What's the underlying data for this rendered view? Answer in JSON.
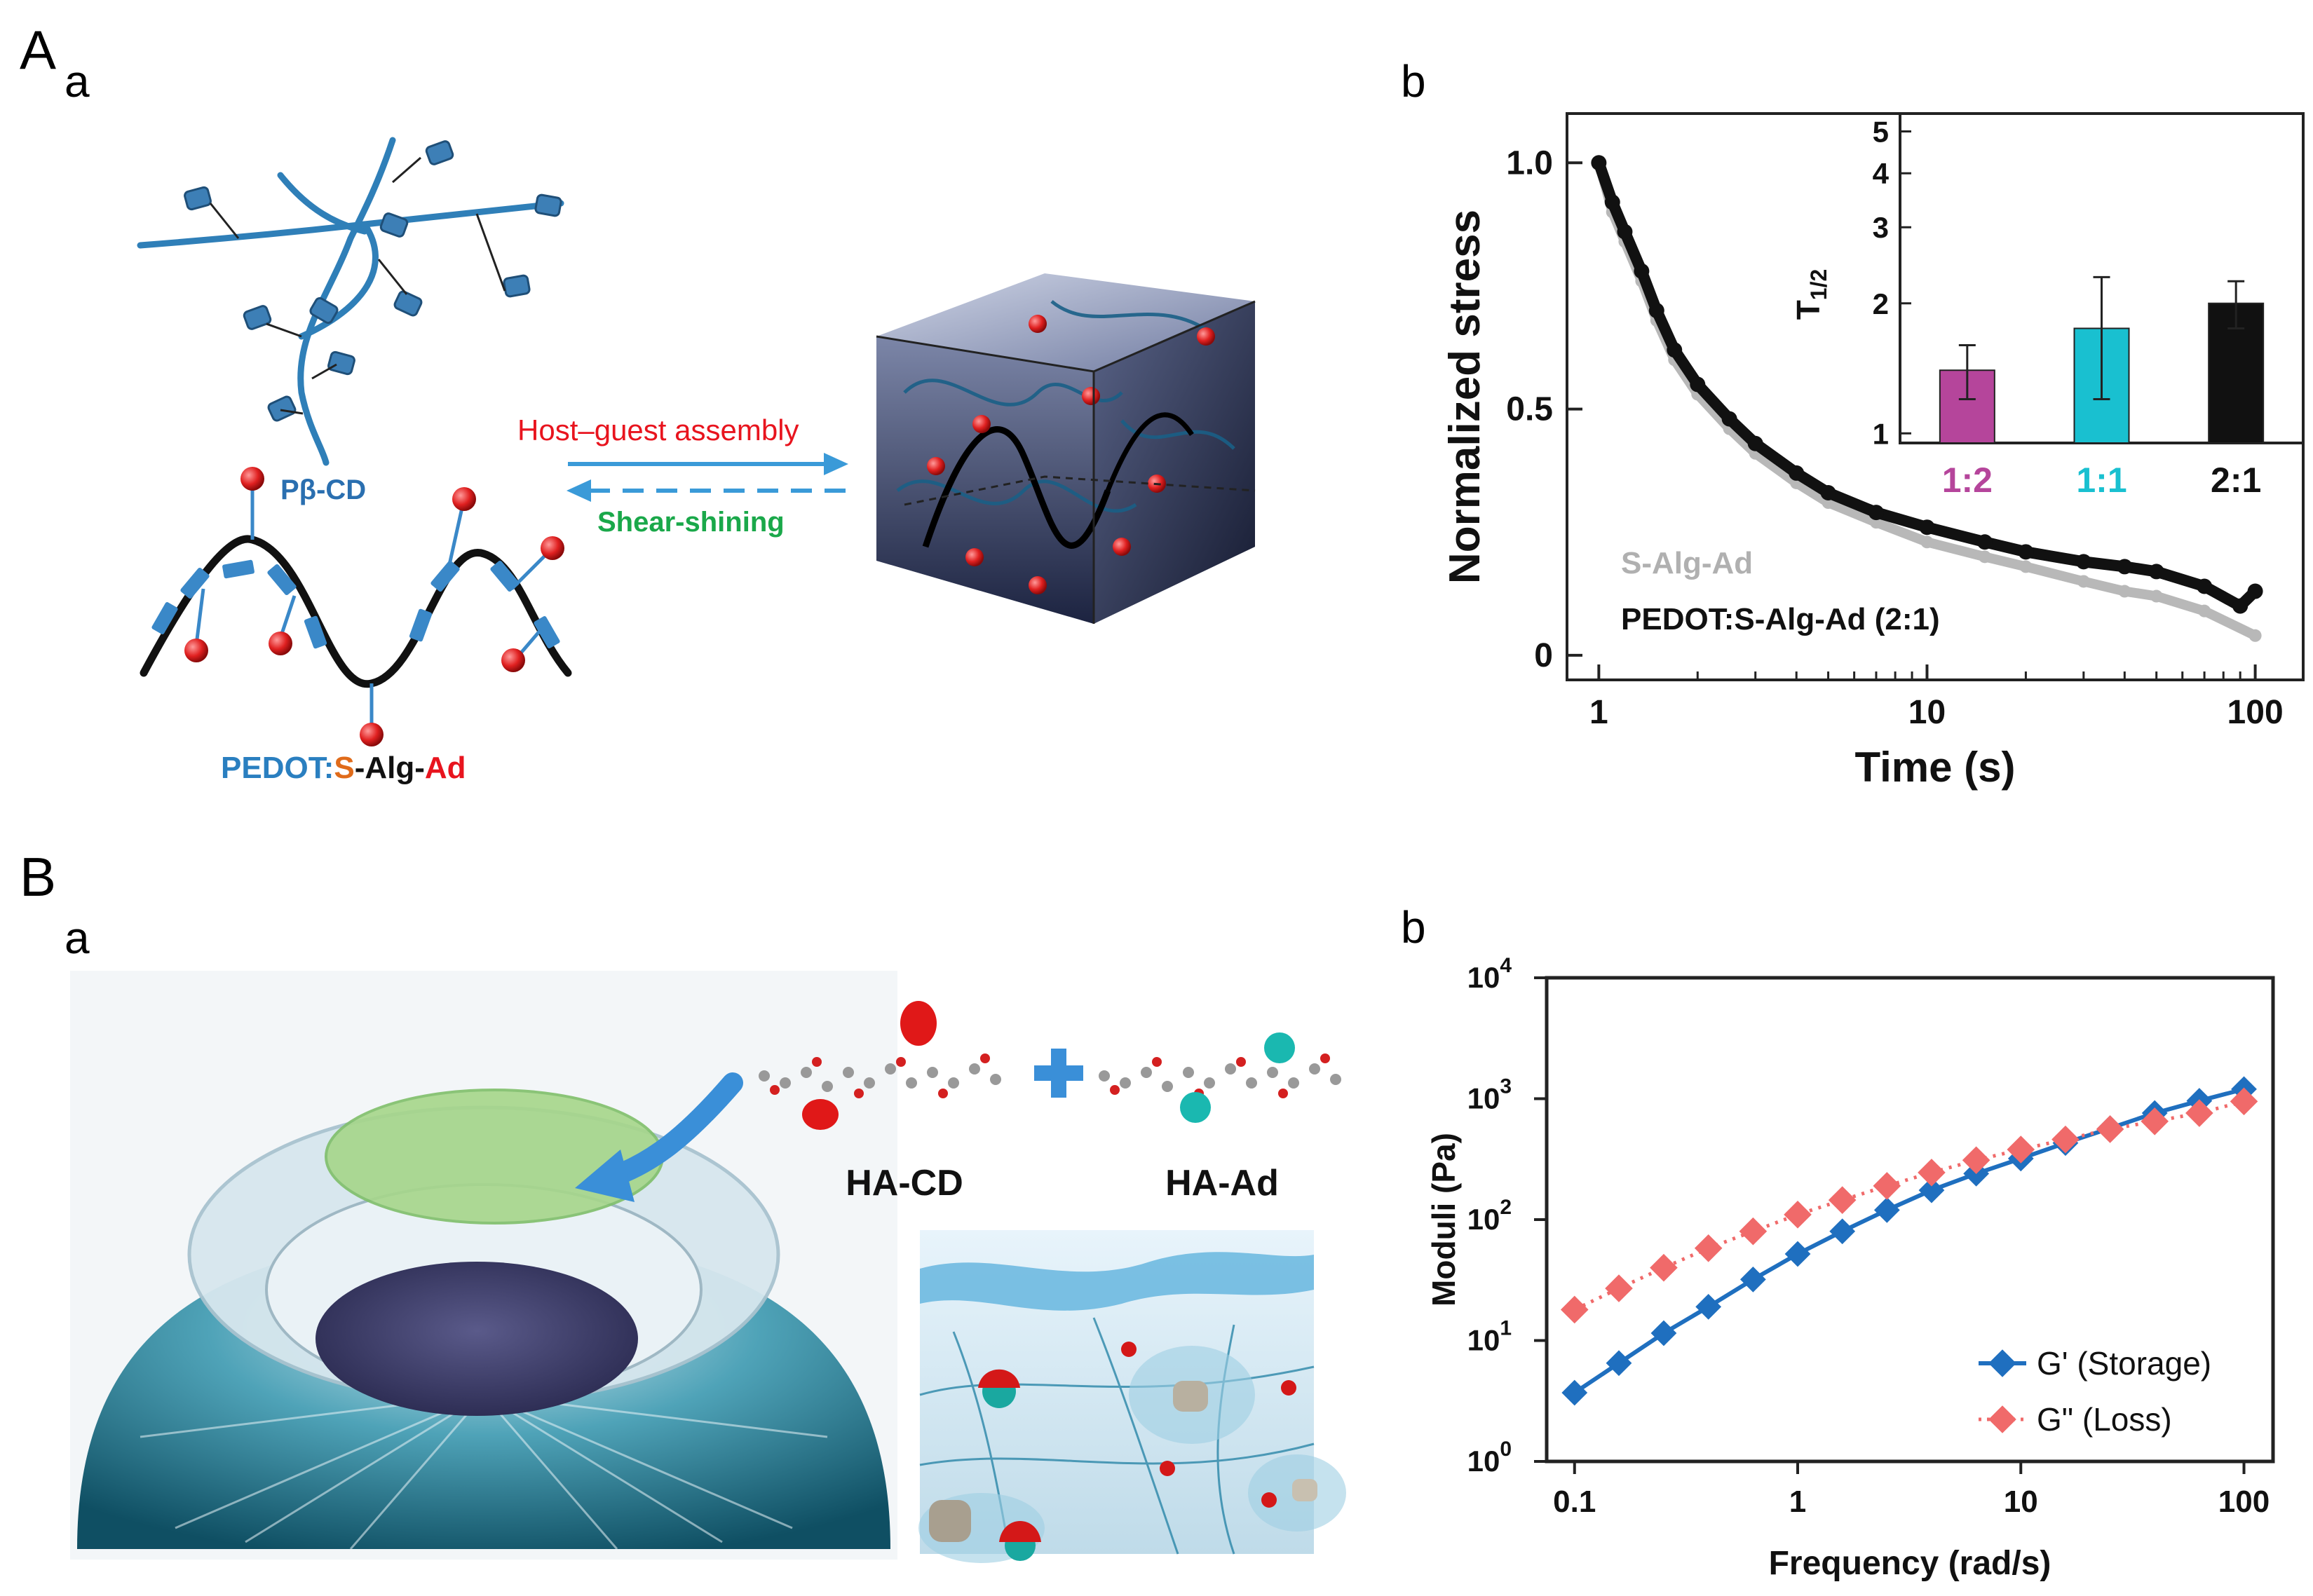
{
  "panels": {
    "A": "A",
    "A_a": "a",
    "A_b": "b",
    "B": "B",
    "B_a": "a",
    "B_b": "b"
  },
  "schematic_A": {
    "pbcd_label": "Pβ-CD",
    "host_guest_label": "Host–guest assembly",
    "shear_label": "Shear-shining",
    "pedot_label_1": "PEDOT:",
    "pedot_label_2": "S",
    "pedot_label_3": "-Alg-",
    "pedot_label_4": "Ad"
  },
  "schematic_B": {
    "hacd_label": "HA-CD",
    "haad_label": "HA-Ad"
  },
  "colors": {
    "blue_chain": "#2f7fb8",
    "red_sphere": "#e02020",
    "gray_series": "#b8b8b8",
    "black_series": "#111111",
    "magenta_bar": "#b5459b",
    "cyan_bar": "#19c0d0",
    "storage_blue": "#1f6fbf",
    "loss_red": "#f06a6a",
    "host_guest_red": "#e8141e",
    "shear_green": "#1aa84a",
    "pedot_blue": "#2a7fc0",
    "pedot_orange": "#e06b1a"
  },
  "chart_data": [
    {
      "id": "A_b",
      "type": "scatter",
      "ylabel": "Normalized stress",
      "xlabel": "Time (s)",
      "x_scale": "log",
      "xlim": [
        0.8,
        140
      ],
      "ylim": [
        -0.05,
        1.1
      ],
      "x_ticks": [
        "1",
        "10",
        "100"
      ],
      "y_ticks": [
        "0",
        "0.5",
        "1.0"
      ],
      "legend_text": [
        "S-Alg-Ad",
        "PEDOT:S-Alg-Ad (2:1)"
      ],
      "series": [
        {
          "name": "S-Alg-Ad",
          "x": [
            1,
            1.1,
            1.2,
            1.35,
            1.5,
            1.7,
            2,
            2.5,
            3,
            4,
            5,
            7,
            10,
            15,
            20,
            30,
            40,
            50,
            70,
            100
          ],
          "y": [
            1.0,
            0.9,
            0.84,
            0.76,
            0.68,
            0.6,
            0.53,
            0.46,
            0.41,
            0.35,
            0.31,
            0.27,
            0.23,
            0.2,
            0.18,
            0.15,
            0.13,
            0.12,
            0.09,
            0.04
          ]
        },
        {
          "name": "PEDOT:S-Alg-Ad (2:1)",
          "x": [
            1,
            1.1,
            1.2,
            1.35,
            1.5,
            1.7,
            2,
            2.5,
            3,
            4,
            5,
            7,
            10,
            15,
            20,
            30,
            40,
            50,
            70,
            90,
            100
          ],
          "y": [
            1.0,
            0.92,
            0.86,
            0.78,
            0.7,
            0.62,
            0.55,
            0.48,
            0.43,
            0.37,
            0.33,
            0.29,
            0.26,
            0.23,
            0.21,
            0.19,
            0.18,
            0.17,
            0.14,
            0.1,
            0.13
          ]
        }
      ],
      "inset": {
        "type": "bar",
        "ylabel": "T1/2",
        "y_scale": "log",
        "ylim": [
          0.95,
          5.5
        ],
        "y_ticks": [
          "1",
          "2",
          "3",
          "4",
          "5"
        ],
        "categories": [
          "1:2",
          "1:1",
          "2:1"
        ],
        "values": [
          1.4,
          1.75,
          2.0
        ],
        "errors": [
          0.2,
          0.55,
          0.25
        ]
      }
    },
    {
      "id": "B_b",
      "type": "line",
      "ylabel": "Moduli (Pa)",
      "xlabel": "Frequency (rad/s)",
      "x_scale": "log",
      "y_scale": "log",
      "xlim": [
        0.075,
        135
      ],
      "ylim": [
        1,
        10000
      ],
      "x_ticks": [
        "0.1",
        "1",
        "10",
        "100"
      ],
      "y_ticks": [
        "10^0",
        "10^1",
        "10^2",
        "10^3",
        "10^4"
      ],
      "series": [
        {
          "name": "G' (Storage)",
          "x": [
            0.1,
            0.158,
            0.251,
            0.398,
            0.631,
            1,
            1.585,
            2.512,
            3.981,
            6.31,
            10,
            15.85,
            25.12,
            39.81,
            63.1,
            100
          ],
          "y": [
            3.7,
            6.5,
            11.5,
            19,
            32,
            52,
            80,
            120,
            175,
            240,
            320,
            430,
            570,
            760,
            960,
            1200
          ]
        },
        {
          "name": "G\" (Loss)",
          "x": [
            0.1,
            0.158,
            0.251,
            0.398,
            0.631,
            1,
            1.585,
            2.512,
            3.981,
            6.31,
            10,
            15.85,
            25.12,
            39.81,
            63.1,
            100
          ],
          "y": [
            18,
            27,
            40,
            58,
            80,
            110,
            145,
            190,
            245,
            310,
            380,
            460,
            560,
            650,
            760,
            950
          ]
        }
      ]
    }
  ]
}
